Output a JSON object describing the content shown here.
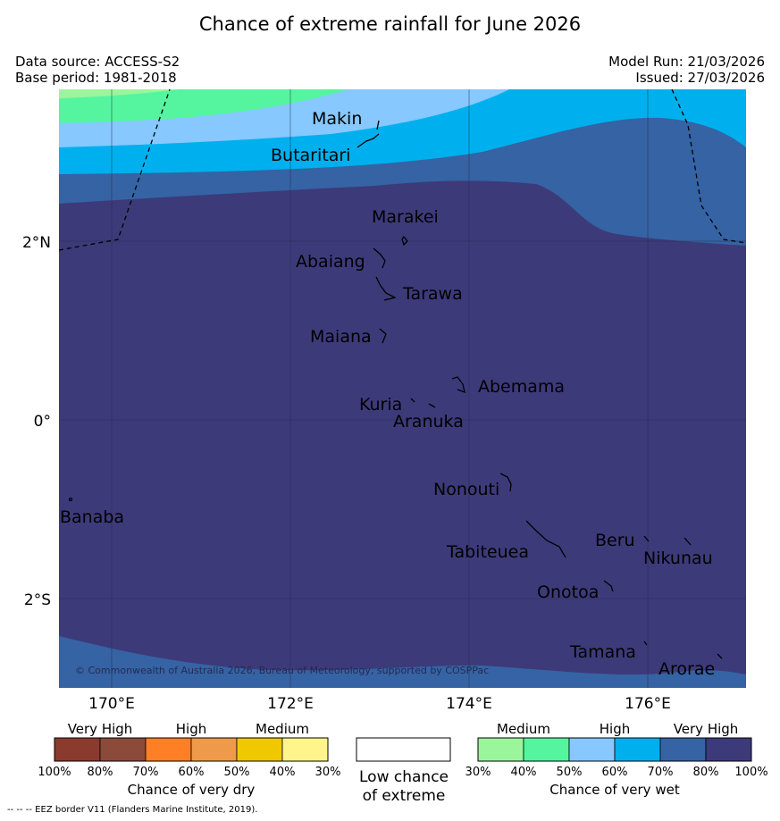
{
  "title": "Chance of extreme rainfall for June 2026",
  "header": {
    "data_source": "Data source: ACCESS-S2",
    "base_period": "Base period: 1981-2018",
    "model_run": "Model Run: 21/03/2026",
    "issued": "Issued: 27/03/2026"
  },
  "map": {
    "lat_labels": [
      "2°N",
      "0°",
      "2°S"
    ],
    "lon_labels": [
      "170°E",
      "172°E",
      "174°E",
      "176°E"
    ],
    "places": {
      "makin": "Makin",
      "butaritari": "Butaritari",
      "marakei": "Marakei",
      "abaiang": "Abaiang",
      "tarawa": "Tarawa",
      "maiana": "Maiana",
      "abemama": "Abemama",
      "kuria": "Kuria",
      "aranuka": "Aranuka",
      "nonouti": "Nonouti",
      "banaba": "Banaba",
      "tabiteuea": "Tabiteuea",
      "beru": "Beru",
      "nikunau": "Nikunau",
      "onotoa": "Onotoa",
      "tamana": "Tamana",
      "arorae": "Arorae"
    },
    "copyright": "© Commonwealth of Australia 2026, Bureau of Meteorology, supported by COSPPac"
  },
  "legend": {
    "dry": {
      "categories": [
        "Very High",
        "High",
        "Medium"
      ],
      "ticks": [
        "100%",
        "80%",
        "70%",
        "60%",
        "50%",
        "40%",
        "30%"
      ],
      "colors": [
        "#8b3a2e",
        "#8b4a3a",
        "#ff7f27",
        "#ee9a4a",
        "#f0c800",
        "#fff58a"
      ],
      "caption": "Chance of very dry"
    },
    "neutral": {
      "line1": "Low chance",
      "line2": "of extreme"
    },
    "wet": {
      "categories": [
        "Medium",
        "High",
        "Very High"
      ],
      "ticks": [
        "30%",
        "40%",
        "50%",
        "60%",
        "70%",
        "80%",
        "100%"
      ],
      "colors": [
        "#9bf59b",
        "#55f5a0",
        "#86c8ff",
        "#00b0ee",
        "#3563a3",
        "#3d3a7a"
      ],
      "caption": "Chance of very wet"
    }
  },
  "footnote": "--  --  -- EEZ border V11 (Flanders Marine Institute, 2019)."
}
